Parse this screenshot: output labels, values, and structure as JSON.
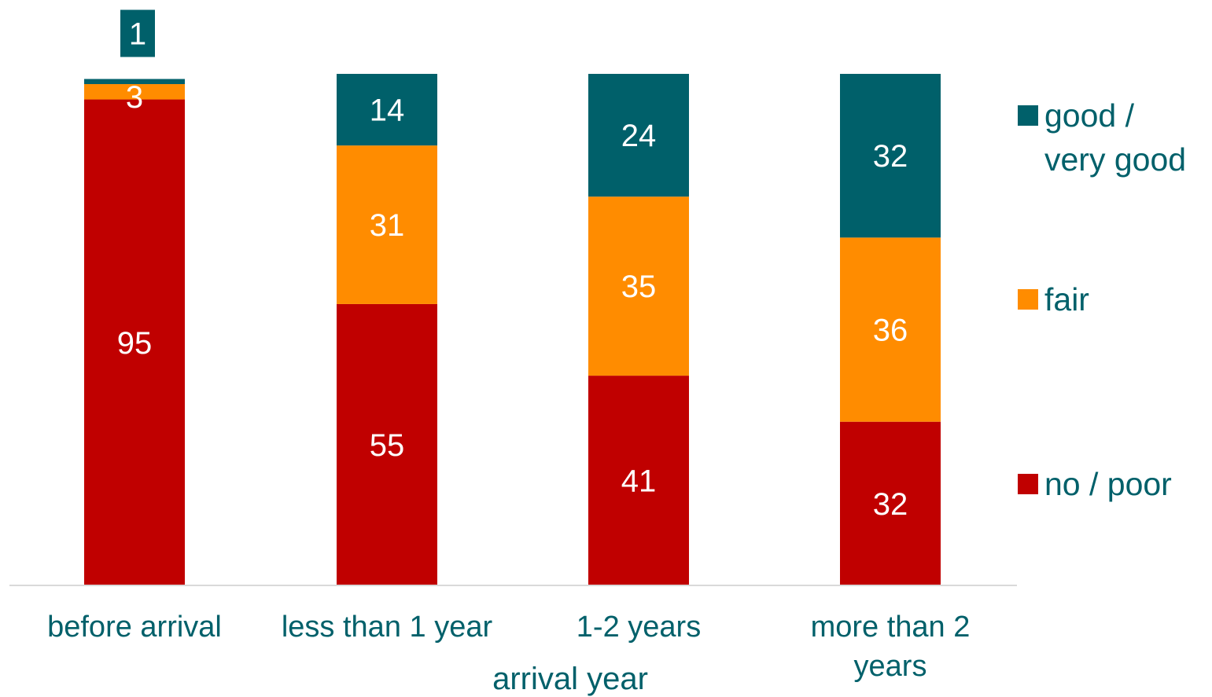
{
  "chart_data": {
    "type": "bar",
    "stacked": true,
    "xlabel": "arrival year",
    "ylabel": "",
    "ylim": [
      0,
      100
    ],
    "grid": false,
    "legend": "right",
    "categories": [
      [
        "before arrival"
      ],
      [
        "less than 1 year"
      ],
      [
        "1-2 years"
      ],
      [
        "more than 2",
        "years"
      ]
    ],
    "series": [
      {
        "name": "no / poor",
        "legend_lines": [
          "no / poor"
        ],
        "color": "#c00000",
        "values": [
          95,
          55,
          41,
          32
        ]
      },
      {
        "name": "fair",
        "legend_lines": [
          "fair"
        ],
        "color": "#ff8c00",
        "values": [
          3,
          31,
          35,
          36
        ]
      },
      {
        "name": "good / very good",
        "legend_lines": [
          "good /",
          "very good"
        ],
        "color": "#00606a",
        "values": [
          1,
          14,
          24,
          32
        ]
      }
    ]
  }
}
